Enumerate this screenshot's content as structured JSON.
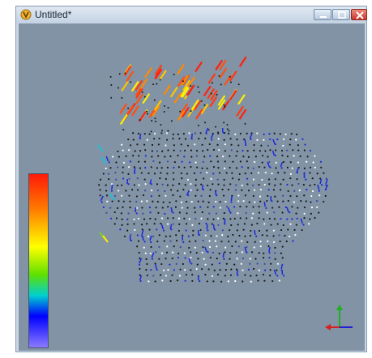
{
  "window": {
    "title": "Untitled*",
    "app_icon": "app-icon",
    "controls": [
      "minimize-icon",
      "maximize-icon",
      "close-icon"
    ]
  },
  "colors": {
    "viewport_bg": "#8193a5",
    "title_bar": "#c9d6e4",
    "colormap": [
      "#ff1a0a",
      "#ff7a00",
      "#ffff00",
      "#5fe000",
      "#00d0d0",
      "#0000ff",
      "#8b7bff"
    ],
    "axis_x": "#d42020",
    "axis_y": "#20b020",
    "axis_z": "#2020d0"
  }
}
